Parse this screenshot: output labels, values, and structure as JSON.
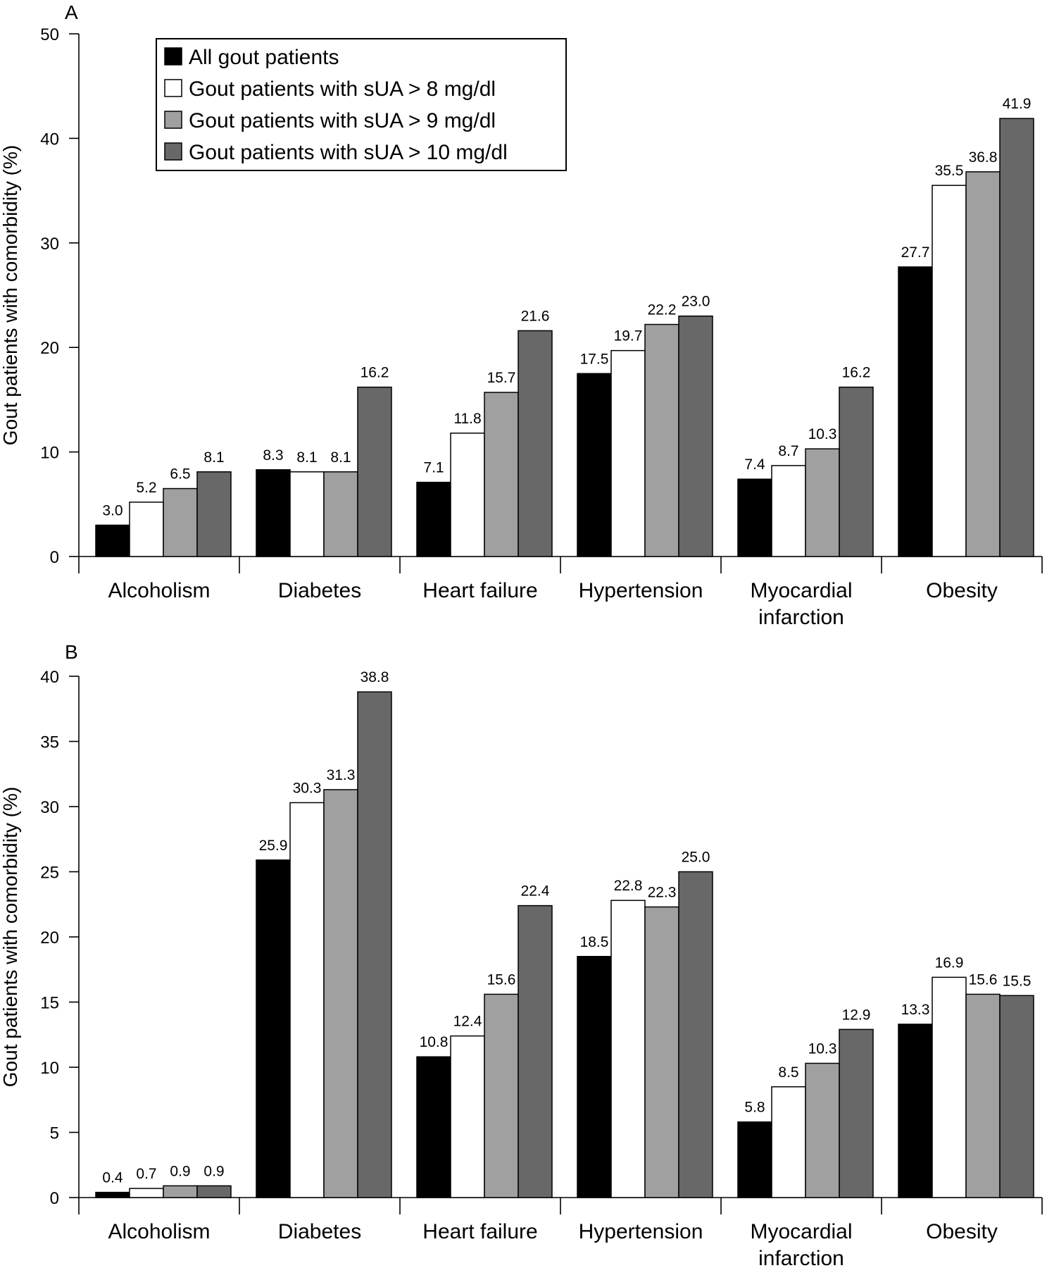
{
  "chart_data": [
    {
      "panel": "A",
      "type": "bar",
      "ylabel": "Gout patients with comorbidity (%)",
      "ylim": [
        0,
        50
      ],
      "yticks": [
        0,
        10,
        20,
        30,
        40,
        50
      ],
      "categories": [
        "Alcoholism",
        "Diabetes",
        "Heart failure",
        "Hypertension",
        "Myocardial infarction",
        "Obesity"
      ],
      "category_lines": [
        [
          "Alcoholism"
        ],
        [
          "Diabetes"
        ],
        [
          "Heart failure"
        ],
        [
          "Hypertension"
        ],
        [
          "Myocardial",
          "infarction"
        ],
        [
          "Obesity"
        ]
      ],
      "series": [
        {
          "name": "All gout patients",
          "color": "#000000",
          "values": [
            3.0,
            8.3,
            7.1,
            17.5,
            7.4,
            27.7
          ],
          "labels": [
            "3.0",
            "8.3",
            "7.1",
            "17.5",
            "7.4",
            "27.7"
          ]
        },
        {
          "name": "Gout patients with sUA > 8 mg/dl",
          "color": "#ffffff",
          "values": [
            5.2,
            8.1,
            11.8,
            19.7,
            8.7,
            35.5
          ],
          "labels": [
            "5.2",
            "8.1",
            "11.8",
            "19.7",
            "8.7",
            "35.5"
          ]
        },
        {
          "name": "Gout patients with sUA > 9 mg/dl",
          "color": "#a0a0a0",
          "values": [
            6.5,
            8.1,
            15.7,
            22.2,
            10.3,
            36.8
          ],
          "labels": [
            "6.5",
            "8.1",
            "15.7",
            "22.2",
            "10.3",
            "36.8"
          ]
        },
        {
          "name": "Gout patients with sUA > 10 mg/dl",
          "color": "#686868",
          "values": [
            8.1,
            16.2,
            21.6,
            23.0,
            16.2,
            41.9
          ],
          "labels": [
            "8.1",
            "16.2",
            "21.6",
            "23.0",
            "16.2",
            "41.9"
          ]
        }
      ],
      "legend": "top-left",
      "grid": false
    },
    {
      "panel": "B",
      "type": "bar",
      "ylabel": "Gout patients with comorbidity (%)",
      "ylim": [
        0,
        40
      ],
      "yticks": [
        0,
        5,
        10,
        15,
        20,
        25,
        30,
        35,
        40
      ],
      "categories": [
        "Alcoholism",
        "Diabetes",
        "Heart failure",
        "Hypertension",
        "Myocardial infarction",
        "Obesity"
      ],
      "category_lines": [
        [
          "Alcoholism"
        ],
        [
          "Diabetes"
        ],
        [
          "Heart failure"
        ],
        [
          "Hypertension"
        ],
        [
          "Myocardial",
          "infarction"
        ],
        [
          "Obesity"
        ]
      ],
      "series": [
        {
          "name": "All gout patients",
          "color": "#000000",
          "values": [
            0.4,
            25.9,
            10.8,
            18.5,
            5.8,
            13.3
          ],
          "labels": [
            "0.4",
            "25.9",
            "10.8",
            "18.5",
            "5.8",
            "13.3"
          ]
        },
        {
          "name": "Gout patients with sUA > 8 mg/dl",
          "color": "#ffffff",
          "values": [
            0.7,
            30.3,
            12.4,
            22.8,
            8.5,
            16.9
          ],
          "labels": [
            "0.7",
            "30.3",
            "12.4",
            "22.8",
            "8.5",
            "16.9"
          ]
        },
        {
          "name": "Gout patients with sUA > 9 mg/dl",
          "color": "#a0a0a0",
          "values": [
            0.9,
            31.3,
            15.6,
            22.3,
            10.3,
            15.6
          ],
          "labels": [
            "0.9",
            "31.3",
            "15.6",
            "22.3",
            "10.3",
            "15.6"
          ]
        },
        {
          "name": "Gout patients with sUA > 10 mg/dl",
          "color": "#686868",
          "values": [
            0.9,
            38.8,
            22.4,
            25.0,
            12.9,
            15.5
          ],
          "labels": [
            "0.9",
            "38.8",
            "22.4",
            "25.0",
            "12.9",
            "15.5"
          ]
        }
      ],
      "grid": false
    }
  ]
}
